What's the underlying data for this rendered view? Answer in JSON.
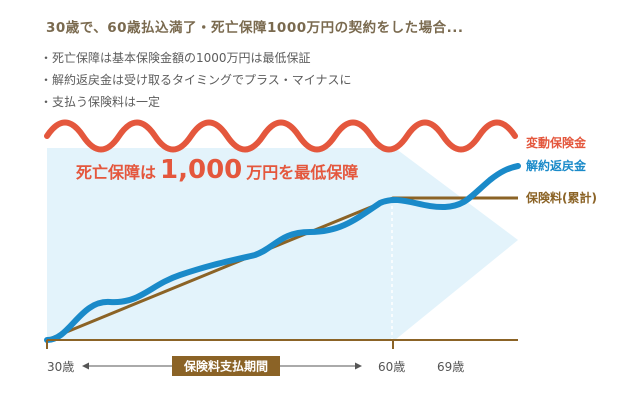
{
  "title": "30歳で、60歳払込満了・死亡保障1000万円の契約をした場合...",
  "bullets": [
    "死亡保障は基本保険金額の1000万円は最低保証",
    "解約返戻金は受け取るタイミングでプラス・マイナスに",
    "支払う保険料は一定"
  ],
  "callout": {
    "prefix": "死亡保障は",
    "amount": "1,000",
    "suffix": "万円を最低保障"
  },
  "legend": {
    "variable_benefit": "変動保険金",
    "surrender_value": "解約返戻金",
    "premium_total": "保険料(累計)"
  },
  "axis": {
    "start_label": "30歳",
    "end_pay_label": "60歳",
    "label_69": "69歳",
    "period_label": "保険料支払期間"
  },
  "colors": {
    "variable_benefit": "#e4573d",
    "surrender_value": "#1a8ac9",
    "premium_total": "#8b6326",
    "guarantee_area": "#e3f3fb",
    "axis": "#8b6326"
  }
}
